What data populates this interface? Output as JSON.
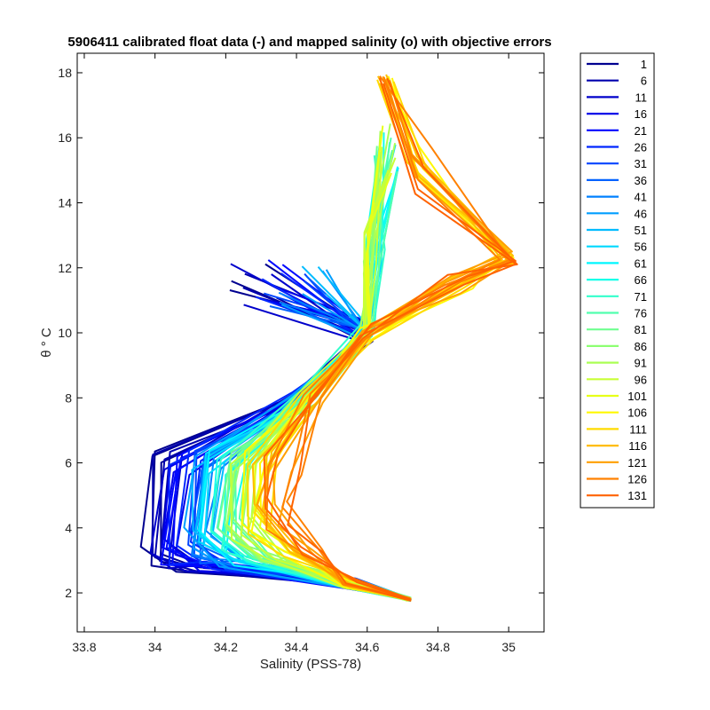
{
  "chart_data": {
    "type": "line",
    "title": "5906411 calibrated float data (-) and mapped salinity (o) with objective errors",
    "xlabel": "Salinity (PSS-78)",
    "ylabel": "θ ° C",
    "xlim": [
      33.78,
      35.1
    ],
    "ylim": [
      0.8,
      18.6
    ],
    "xticks": [
      33.8,
      34.0,
      34.2,
      34.4,
      34.6,
      34.8,
      35.0
    ],
    "xtick_labels": [
      "33.8",
      "34",
      "34.2",
      "34.4",
      "34.6",
      "34.8",
      "35"
    ],
    "yticks": [
      2,
      4,
      6,
      8,
      10,
      12,
      14,
      16,
      18
    ],
    "ytick_labels": [
      "2",
      "4",
      "6",
      "8",
      "10",
      "12",
      "14",
      "16",
      "18"
    ],
    "grid": false,
    "legend_position": "outside-right",
    "colormap": "jet",
    "legend": [
      {
        "label": "1",
        "color": "#000090"
      },
      {
        "label": "6",
        "color": "#0000AE"
      },
      {
        "label": "11",
        "color": "#0000CB"
      },
      {
        "label": "16",
        "color": "#0000E9"
      },
      {
        "label": "21",
        "color": "#0008FF"
      },
      {
        "label": "26",
        "color": "#0026FF"
      },
      {
        "label": "31",
        "color": "#0044FF"
      },
      {
        "label": "36",
        "color": "#0062FF"
      },
      {
        "label": "41",
        "color": "#0080FF"
      },
      {
        "label": "46",
        "color": "#009EFF"
      },
      {
        "label": "51",
        "color": "#00BCFF"
      },
      {
        "label": "56",
        "color": "#00D9FF"
      },
      {
        "label": "61",
        "color": "#00F7FF"
      },
      {
        "label": "66",
        "color": "#15FFE9"
      },
      {
        "label": "71",
        "color": "#33FFCB"
      },
      {
        "label": "76",
        "color": "#51FFAE"
      },
      {
        "label": "81",
        "color": "#6FFF90"
      },
      {
        "label": "86",
        "color": "#8DFF72"
      },
      {
        "label": "91",
        "color": "#ABFF54"
      },
      {
        "label": "96",
        "color": "#C9FF36"
      },
      {
        "label": "101",
        "color": "#E7FF18"
      },
      {
        "label": "106",
        "color": "#FFF900"
      },
      {
        "label": "111",
        "color": "#FFDB00"
      },
      {
        "label": "116",
        "color": "#FFBD00"
      },
      {
        "label": "121",
        "color": "#FF9F00"
      },
      {
        "label": "126",
        "color": "#FF8100"
      },
      {
        "label": "131",
        "color": "#FF6300"
      }
    ],
    "series_shape": {
      "deep_end": [
        34.72,
        1.75
      ],
      "mid_salinity_minimum_cold_profiles": [
        34.0,
        3.0
      ],
      "mid_salinity_minimum_warm_profiles": [
        34.35,
        4.5
      ],
      "thermocline_pivot": [
        34.6,
        10.0
      ],
      "upper_max_temperature": [
        34.65,
        17.8
      ],
      "upper_max_salinity": [
        35.0,
        12.3
      ]
    }
  }
}
